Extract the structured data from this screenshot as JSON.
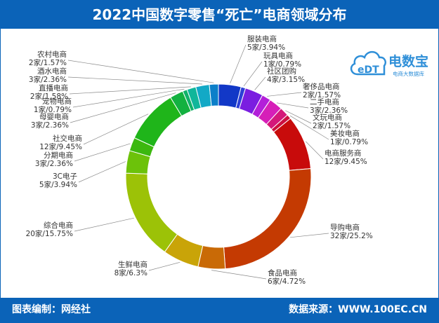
{
  "header": {
    "title": "2022中国数字零售“死亡”电商领域分布"
  },
  "footer": {
    "credit": "图表编制：网经社",
    "source": "数据来源：WWW.100EC.CN"
  },
  "logo": {
    "mark": "eDT",
    "name": "电数宝",
    "tagline": "电商大数据库"
  },
  "colors": {
    "header": "#0b63b8",
    "logo": "#2f8fd8"
  },
  "chart_data": {
    "type": "pie",
    "title": "2022中国数字零售“死亡”电商领域分布",
    "style": "donut",
    "unit_count": "家",
    "slices": [
      {
        "name": "服装电商",
        "count": 5,
        "share": 3.94,
        "color": "#1238c7",
        "label": "5家/3.94%"
      },
      {
        "name": "玩具电商",
        "count": 1,
        "share": 0.79,
        "color": "#2c3fd6",
        "label": "1家/0.79%"
      },
      {
        "name": "社区团购",
        "count": 4,
        "share": 3.15,
        "color": "#7a1ee0",
        "label": "4家/3.15%"
      },
      {
        "name": "奢侈品电商",
        "count": 2,
        "share": 1.57,
        "color": "#b31fd9",
        "label": "2家/1.57%"
      },
      {
        "name": "二手电商",
        "count": 3,
        "share": 2.36,
        "color": "#d61fb8",
        "label": "3家/2.36%"
      },
      {
        "name": "文玩电商",
        "count": 2,
        "share": 1.57,
        "color": "#d4187a",
        "label": "2家/1.57%"
      },
      {
        "name": "美妆电商",
        "count": 1,
        "share": 0.79,
        "color": "#cc1040",
        "label": "1家/0.79%"
      },
      {
        "name": "电商服务商",
        "count": 12,
        "share": 9.45,
        "color": "#c80b0b",
        "label": "12家/9.45%"
      },
      {
        "name": "导购电商",
        "count": 32,
        "share": 25.2,
        "color": "#c43a02",
        "label": "32家/25.2%"
      },
      {
        "name": "食品电商",
        "count": 6,
        "share": 4.72,
        "color": "#c96a06",
        "label": "6家/4.72%"
      },
      {
        "name": "生鲜电商",
        "count": 8,
        "share": 6.3,
        "color": "#c9a408",
        "label": "8家/6.3%"
      },
      {
        "name": "综合电商",
        "count": 20,
        "share": 15.75,
        "color": "#9cc207",
        "label": "20家/15.75%"
      },
      {
        "name": "3C电子",
        "count": 5,
        "share": 3.94,
        "color": "#6cc20a",
        "label": "5家/3.94%"
      },
      {
        "name": "分期电商",
        "count": 3,
        "share": 2.36,
        "color": "#3cb80f",
        "label": "3家/2.36%"
      },
      {
        "name": "社交电商",
        "count": 12,
        "share": 9.45,
        "color": "#1fb51a",
        "label": "12家/9.45%"
      },
      {
        "name": "母婴电商",
        "count": 3,
        "share": 2.36,
        "color": "#13b140",
        "label": "3家/2.36%"
      },
      {
        "name": "宠物电商",
        "count": 1,
        "share": 0.79,
        "color": "#10b26a",
        "label": "1家/0.79%"
      },
      {
        "name": "直播电商",
        "count": 2,
        "share": 1.58,
        "color": "#10b69a",
        "label": "2家/1.58%"
      },
      {
        "name": "酒水电商",
        "count": 3,
        "share": 2.36,
        "color": "#12a9c6",
        "label": "3家/2.36%"
      },
      {
        "name": "农村电商",
        "count": 2,
        "share": 1.57,
        "color": "#0c7fc9",
        "label": "2家/1.57%"
      }
    ]
  }
}
